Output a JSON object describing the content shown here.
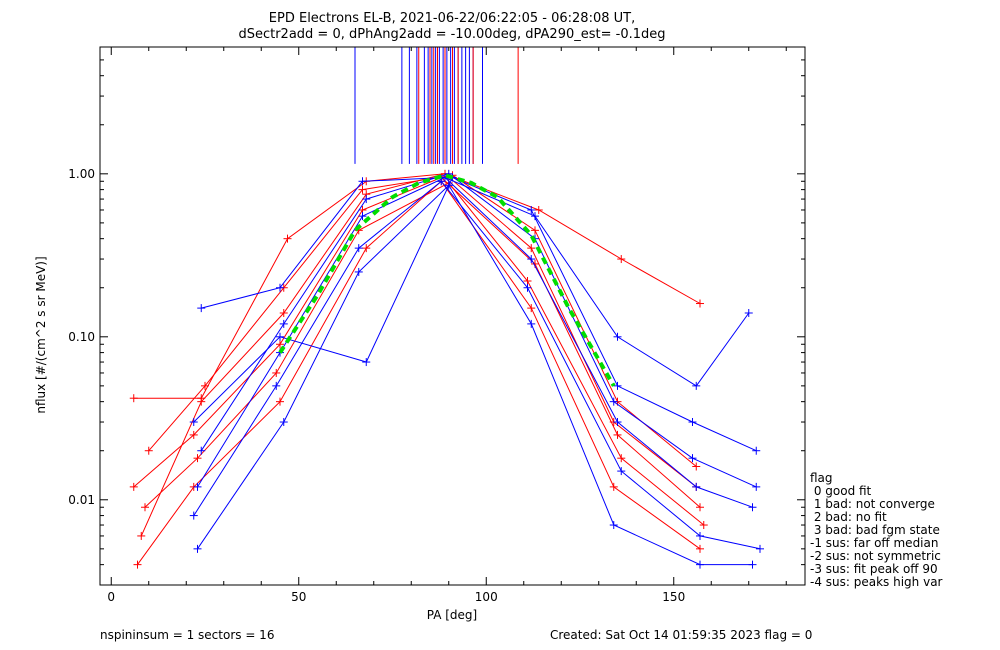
{
  "chart_data": {
    "type": "line",
    "title_line1": "EPD Electrons EL-B, 2021-06-22/06:22:05 - 06:28:08 UT,",
    "title_line2": "dSectr2add = 0, dPhAng2add = -10.00deg, dPA290_est=  -0.1deg",
    "xlabel": "PA [deg]",
    "ylabel": "nflux [#/(cm^2 s sr MeV)]",
    "xlim": [
      -3,
      185
    ],
    "ylim": [
      0.003,
      6
    ],
    "yscale": "log",
    "x_tick_labels": [
      "0",
      "50",
      "100",
      "150"
    ],
    "y_tick_labels": [
      "0.01",
      "0.10",
      "1.00"
    ],
    "series": [
      {
        "color": "#ff0000",
        "x": [
          6,
          22,
          45,
          67,
          88,
          113,
          135,
          157
        ],
        "y": [
          0.012,
          0.025,
          0.09,
          0.6,
          0.95,
          0.28,
          0.025,
          0.009
        ]
      },
      {
        "color": "#ff0000",
        "x": [
          8,
          24,
          46,
          68,
          89,
          112,
          134,
          156
        ],
        "y": [
          0.006,
          0.04,
          0.14,
          0.75,
          1.0,
          0.35,
          0.03,
          0.012
        ]
      },
      {
        "color": "#ff0000",
        "x": [
          9,
          23,
          44,
          66,
          90,
          111,
          136,
          158
        ],
        "y": [
          0.009,
          0.018,
          0.06,
          0.45,
          0.88,
          0.22,
          0.018,
          0.007
        ]
      },
      {
        "color": "#ff0000",
        "x": [
          10,
          25,
          46,
          67,
          91,
          113,
          135,
          156
        ],
        "y": [
          0.02,
          0.05,
          0.2,
          0.8,
          0.98,
          0.45,
          0.04,
          0.016
        ]
      },
      {
        "color": "#ff0000",
        "x": [
          7,
          22,
          45,
          68,
          88,
          112,
          134,
          157
        ],
        "y": [
          0.004,
          0.012,
          0.04,
          0.35,
          0.9,
          0.15,
          0.012,
          0.005
        ]
      },
      {
        "color": "#ff0000",
        "x": [
          6,
          24,
          47,
          68,
          89,
          114,
          136,
          157
        ],
        "y": [
          0.042,
          0.042,
          0.4,
          0.9,
          1.0,
          0.6,
          0.3,
          0.16
        ]
      },
      {
        "color": "#0000ff",
        "x": [
          23,
          45,
          67,
          89,
          112,
          135,
          156,
          171
        ],
        "y": [
          0.012,
          0.08,
          0.55,
          0.95,
          0.3,
          0.03,
          0.012,
          0.009
        ]
      },
      {
        "color": "#0000ff",
        "x": [
          24,
          46,
          68,
          90,
          113,
          134,
          155,
          172
        ],
        "y": [
          0.02,
          0.12,
          0.7,
          1.0,
          0.4,
          0.04,
          0.018,
          0.012
        ]
      },
      {
        "color": "#0000ff",
        "x": [
          22,
          44,
          66,
          88,
          111,
          136,
          157,
          173
        ],
        "y": [
          0.008,
          0.05,
          0.35,
          0.9,
          0.2,
          0.015,
          0.006,
          0.005
        ]
      },
      {
        "color": "#0000ff",
        "x": [
          24,
          45,
          67,
          89,
          113,
          135,
          156,
          170
        ],
        "y": [
          0.15,
          0.2,
          0.9,
          0.95,
          0.55,
          0.1,
          0.05,
          0.14
        ]
      },
      {
        "color": "#0000ff",
        "x": [
          23,
          46,
          66,
          90,
          112,
          134,
          157,
          171
        ],
        "y": [
          0.005,
          0.03,
          0.25,
          0.85,
          0.12,
          0.007,
          0.004,
          0.004
        ]
      },
      {
        "color": "#0000ff",
        "x": [
          22,
          45,
          68,
          91,
          112,
          135,
          155,
          172
        ],
        "y": [
          0.03,
          0.1,
          0.07,
          0.95,
          0.6,
          0.05,
          0.03,
          0.02
        ]
      }
    ],
    "fit_curve": {
      "color": "#00dd00",
      "x": [
        45,
        55,
        65,
        75,
        82,
        89,
        96,
        103,
        112,
        122,
        134
      ],
      "y": [
        0.08,
        0.18,
        0.45,
        0.72,
        0.88,
        0.98,
        0.88,
        0.72,
        0.42,
        0.15,
        0.05
      ]
    },
    "vertical_markers": {
      "blue": [
        65,
        77.5,
        79.5,
        81.5,
        83.5,
        84.5,
        85.5,
        86.5,
        87.5,
        88.5,
        89.5,
        90.5,
        91.5,
        92.5,
        93.5,
        94.5,
        95.5,
        96.5,
        99
      ],
      "red": [
        82,
        85,
        86,
        87,
        89,
        91,
        92.5,
        96.5,
        108.5
      ]
    },
    "legend_title": "flag",
    "legend": [
      " 0 good fit",
      " 1 bad: not converge",
      " 2 bad: no fit",
      " 3 bad: bad fgm state",
      "-1 sus: far off median",
      "-2 sus: not symmetric",
      "-3 sus: fit peak off 90",
      "-4 sus: peaks high var"
    ]
  },
  "footer": {
    "left": "nspininsum =  1  sectors = 16",
    "right": "Created: Sat Oct 14 01:59:35 2023   flag = 0"
  }
}
